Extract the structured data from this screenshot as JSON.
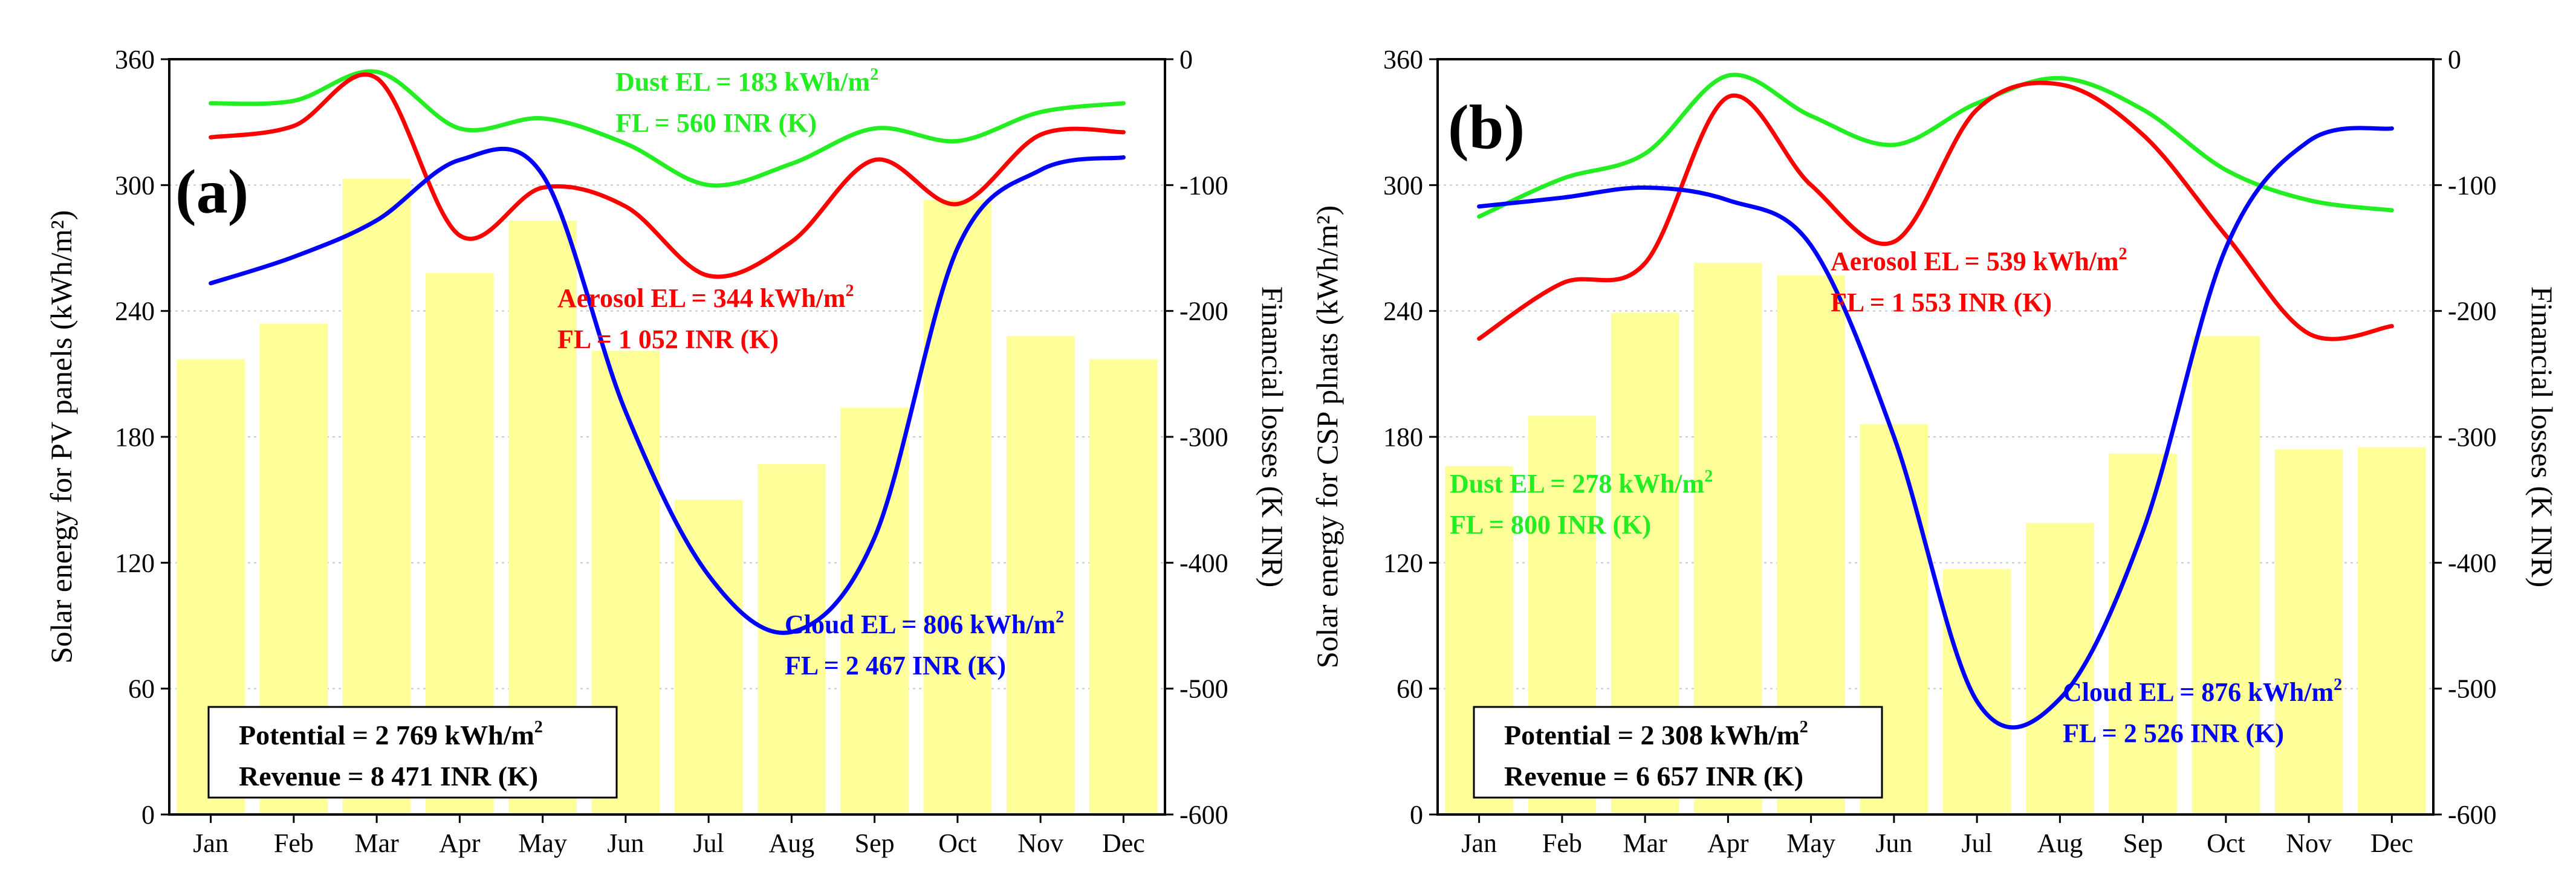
{
  "chart_data": [
    {
      "panel": "(a)",
      "type": "bar",
      "categories": [
        "Jan",
        "Feb",
        "Mar",
        "Apr",
        "May",
        "Jun",
        "Jul",
        "Aug",
        "Sep",
        "Oct",
        "Nov",
        "Dec"
      ],
      "values": [
        217,
        234,
        303,
        258,
        283,
        221,
        150,
        167,
        194,
        293,
        228,
        217
      ],
      "bar_color": "#ffff99",
      "ylabel": "Solar energy for PV panels (kWh/m²)",
      "ylim": [
        0,
        360
      ],
      "yticks": [
        "0",
        "60",
        "120",
        "180",
        "240",
        "300",
        "360"
      ],
      "y2label": "Financial losses (K INR)",
      "y2lim": [
        -600,
        0
      ],
      "y2ticks": [
        "-600",
        "-500",
        "-400",
        "-300",
        "-200",
        "-100",
        "0"
      ],
      "series": [
        {
          "name": "Dust",
          "color": "#22ee22",
          "values": [
            -35,
            -33,
            -10,
            -55,
            -47,
            -67,
            -100,
            -83,
            -55,
            -65,
            -42,
            -35
          ]
        },
        {
          "name": "Aerosol",
          "color": "#ff0000",
          "values": [
            -62,
            -53,
            -15,
            -140,
            -102,
            -117,
            -172,
            -145,
            -80,
            -115,
            -60,
            -58
          ]
        },
        {
          "name": "Cloud",
          "color": "#0000ff",
          "values": [
            -178,
            -157,
            -128,
            -80,
            -92,
            -280,
            -410,
            -455,
            -380,
            -150,
            -88,
            -78
          ]
        }
      ],
      "annotations": {
        "dust_el": "Dust EL = 183 kWh/m",
        "dust_fl": "FL = 560 INR (K)",
        "aerosol_el": "Aerosol EL = 344 kWh/m",
        "aerosol_fl": "FL = 1 052 INR (K)",
        "cloud_el": "Cloud EL = 806 kWh/m",
        "cloud_fl": "FL = 2 467 INR (K)",
        "sup": "2"
      },
      "summary": {
        "potential": "Potential = 2 769 kWh/m",
        "revenue": "Revenue  = 8 471 INR (K)",
        "sup": "2"
      }
    },
    {
      "panel": "(b)",
      "type": "bar",
      "categories": [
        "Jan",
        "Feb",
        "Mar",
        "Apr",
        "May",
        "Jun",
        "Jul",
        "Aug",
        "Sep",
        "Oct",
        "Nov",
        "Dec"
      ],
      "values": [
        166,
        190,
        239,
        263,
        257,
        186,
        117,
        139,
        172,
        228,
        174,
        175
      ],
      "bar_color": "#ffff99",
      "ylabel": "Solar energy for CSP plnats (kWh/m²)",
      "ylim": [
        0,
        360
      ],
      "yticks": [
        "0",
        "60",
        "120",
        "180",
        "240",
        "300",
        "360"
      ],
      "y2label": "Financial losses (K INR)",
      "y2lim": [
        -600,
        0
      ],
      "y2ticks": [
        "-600",
        "-500",
        "-400",
        "-300",
        "-200",
        "-100",
        "0"
      ],
      "series": [
        {
          "name": "Dust",
          "color": "#22ee22",
          "values": [
            -125,
            -95,
            -75,
            -13,
            -45,
            -68,
            -35,
            -15,
            -40,
            -88,
            -112,
            -120
          ]
        },
        {
          "name": "Aerosol",
          "color": "#ff0000",
          "values": [
            -222,
            -178,
            -162,
            -30,
            -100,
            -145,
            -40,
            -20,
            -60,
            -140,
            -218,
            -212
          ]
        },
        {
          "name": "Cloud",
          "color": "#0000ff",
          "values": [
            -117,
            -110,
            -102,
            -112,
            -148,
            -300,
            -510,
            -508,
            -375,
            -150,
            -65,
            -55
          ]
        }
      ],
      "annotations": {
        "dust_el": "Dust EL = 278 kWh/m",
        "dust_fl": "FL = 800 INR (K)",
        "aerosol_el": "Aerosol EL = 539 kWh/m",
        "aerosol_fl": "FL = 1 553 INR (K)",
        "cloud_el": "Cloud EL = 876 kWh/m",
        "cloud_fl": "FL = 2 526 INR (K)",
        "sup": "2"
      },
      "summary": {
        "potential": "Potential = 2 308 kWh/m",
        "revenue": "Revenue  = 6 657 INR (K)",
        "sup": "2"
      }
    }
  ]
}
